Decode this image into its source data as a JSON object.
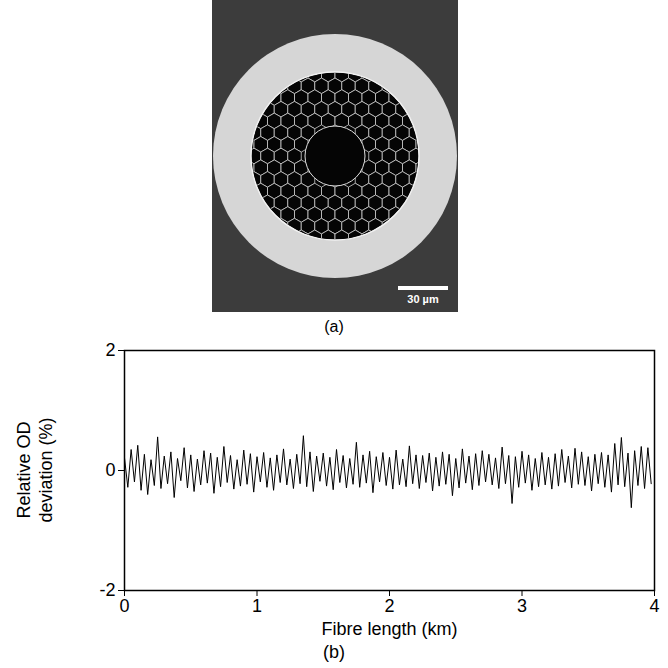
{
  "panel_a": {
    "caption": "(a)",
    "scale_bar": "30 µm"
  },
  "chart_data": {
    "type": "line",
    "caption": "(b)",
    "x_label": "Fibre length (km)",
    "y_label": "Relative OD deviation (%)",
    "color": "#000000",
    "xlim": [
      0,
      4
    ],
    "ylim": [
      -2,
      2
    ],
    "xticks": [
      0,
      1,
      2,
      3,
      4
    ],
    "yticks": [
      -2,
      0,
      2
    ],
    "x": [
      0,
      0.025,
      0.05,
      0.075,
      0.1,
      0.125,
      0.15,
      0.175,
      0.2,
      0.225,
      0.25,
      0.275,
      0.3,
      0.325,
      0.35,
      0.375,
      0.4,
      0.425,
      0.45,
      0.475,
      0.5,
      0.525,
      0.55,
      0.575,
      0.6,
      0.625,
      0.65,
      0.675,
      0.7,
      0.725,
      0.75,
      0.775,
      0.8,
      0.825,
      0.85,
      0.875,
      0.9,
      0.925,
      0.95,
      0.975,
      1,
      1.025,
      1.05,
      1.075,
      1.1,
      1.125,
      1.15,
      1.175,
      1.2,
      1.225,
      1.25,
      1.275,
      1.3,
      1.325,
      1.35,
      1.375,
      1.4,
      1.425,
      1.45,
      1.475,
      1.5,
      1.525,
      1.55,
      1.575,
      1.6,
      1.625,
      1.65,
      1.675,
      1.7,
      1.725,
      1.75,
      1.775,
      1.8,
      1.825,
      1.85,
      1.875,
      1.9,
      1.925,
      1.95,
      1.975,
      2,
      2.025,
      2.05,
      2.075,
      2.1,
      2.125,
      2.15,
      2.175,
      2.2,
      2.225,
      2.25,
      2.275,
      2.3,
      2.325,
      2.35,
      2.375,
      2.4,
      2.425,
      2.45,
      2.475,
      2.5,
      2.525,
      2.55,
      2.575,
      2.6,
      2.625,
      2.65,
      2.675,
      2.7,
      2.725,
      2.75,
      2.775,
      2.8,
      2.825,
      2.85,
      2.875,
      2.9,
      2.925,
      2.95,
      2.975,
      3,
      3.025,
      3.05,
      3.075,
      3.1,
      3.125,
      3.15,
      3.175,
      3.2,
      3.225,
      3.25,
      3.275,
      3.3,
      3.325,
      3.35,
      3.375,
      3.4,
      3.425,
      3.45,
      3.475,
      3.5,
      3.525,
      3.55,
      3.575,
      3.6,
      3.625,
      3.65,
      3.675,
      3.7,
      3.725,
      3.75,
      3.775,
      3.8,
      3.825,
      3.85,
      3.875,
      3.9,
      3.925,
      3.95,
      3.975
    ],
    "values": [
      0.21,
      -0.28,
      0.35,
      -0.19,
      0.42,
      -0.33,
      0.27,
      -0.4,
      0.18,
      -0.25,
      0.56,
      -0.3,
      0.24,
      -0.22,
      0.31,
      -0.45,
      0.2,
      -0.17,
      0.38,
      -0.29,
      0.26,
      -0.35,
      0.19,
      -0.24,
      0.33,
      -0.21,
      0.29,
      -0.38,
      0.22,
      -0.27,
      0.4,
      -0.2,
      0.25,
      -0.31,
      0.18,
      -0.26,
      0.34,
      -0.23,
      0.28,
      -0.36,
      0.23,
      -0.19,
      0.3,
      -0.28,
      0.21,
      -0.33,
      0.26,
      -0.2,
      0.36,
      -0.24,
      0.19,
      -0.3,
      0.27,
      -0.22,
      0.58,
      -0.27,
      0.31,
      -0.35,
      0.24,
      -0.18,
      0.29,
      -0.26,
      0.22,
      -0.32,
      0.35,
      -0.2,
      0.25,
      -0.29,
      0.2,
      -0.23,
      0.47,
      -0.28,
      0.26,
      -0.21,
      0.32,
      -0.37,
      0.23,
      -0.19,
      0.3,
      -0.25,
      0.22,
      -0.31,
      0.34,
      -0.24,
      0.19,
      -0.27,
      0.41,
      -0.22,
      0.26,
      -0.3,
      0.25,
      -0.2,
      0.29,
      -0.34,
      0.22,
      -0.26,
      0.31,
      -0.23,
      0.27,
      -0.42,
      0.2,
      -0.29,
      0.36,
      -0.21,
      0.24,
      -0.32,
      0.28,
      -0.25,
      0.33,
      -0.19,
      0.27,
      -0.24,
      0.21,
      -0.3,
      0.39,
      -0.22,
      0.25,
      -0.55,
      0.23,
      -0.28,
      0.32,
      -0.21,
      0.26,
      -0.33,
      0.2,
      -0.27,
      0.3,
      -0.24,
      0.22,
      -0.31,
      0.28,
      -0.26,
      0.35,
      -0.2,
      0.24,
      -0.29,
      0.37,
      -0.23,
      0.31,
      -0.25,
      0.23,
      -0.34,
      0.27,
      -0.22,
      0.3,
      -0.28,
      0.26,
      -0.36,
      0.45,
      -0.24,
      0.55,
      -0.27,
      0.29,
      -0.62,
      0.33,
      -0.25,
      0.4,
      -0.3,
      0.38,
      -0.22
    ]
  }
}
